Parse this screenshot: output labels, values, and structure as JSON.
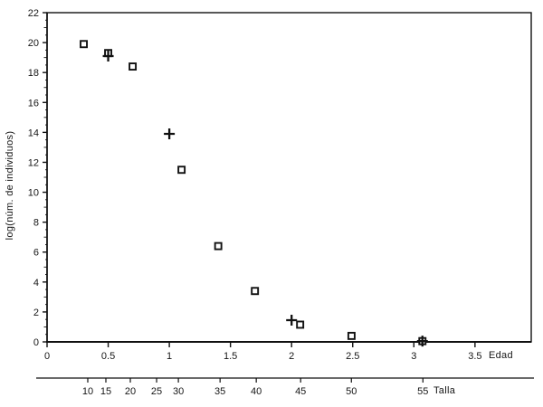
{
  "chart_data": {
    "type": "scatter",
    "title": "",
    "ylabel": "log(núm. de individuos)",
    "xlabel": "Edad",
    "x2label": "Talla",
    "xlim": [
      0,
      3.96
    ],
    "ylim": [
      0,
      22
    ],
    "grid": false,
    "legend": "none",
    "colors": {
      "marker": "#111111",
      "axis": "#111111",
      "background": "#ffffff"
    },
    "x_ticks": [
      {
        "value": 0,
        "label": "0"
      },
      {
        "value": 0.5,
        "label": "0.5"
      },
      {
        "value": 1,
        "label": "1"
      },
      {
        "value": 1.5,
        "label": "1.5"
      },
      {
        "value": 2,
        "label": "2"
      },
      {
        "value": 2.5,
        "label": "2.5"
      },
      {
        "value": 3,
        "label": "3"
      },
      {
        "value": 3.5,
        "label": "3.5"
      }
    ],
    "y_ticks": [
      {
        "value": 0,
        "label": "0"
      },
      {
        "value": 2,
        "label": "2"
      },
      {
        "value": 4,
        "label": "4"
      },
      {
        "value": 6,
        "label": "6"
      },
      {
        "value": 8,
        "label": "8"
      },
      {
        "value": 10,
        "label": "10"
      },
      {
        "value": 12,
        "label": "12"
      },
      {
        "value": 14,
        "label": "14"
      },
      {
        "value": 16,
        "label": "16"
      },
      {
        "value": 18,
        "label": "18"
      },
      {
        "value": 20,
        "label": "20"
      },
      {
        "value": 22,
        "label": "22"
      }
    ],
    "talla_ticks": [
      {
        "label": "10",
        "edad_pos": 0.333
      },
      {
        "label": "15",
        "edad_pos": 0.481
      },
      {
        "label": "20",
        "edad_pos": 0.681
      },
      {
        "label": "25",
        "edad_pos": 0.896
      },
      {
        "label": "30",
        "edad_pos": 1.074
      },
      {
        "label": "35",
        "edad_pos": 1.415
      },
      {
        "label": "40",
        "edad_pos": 1.711
      },
      {
        "label": "45",
        "edad_pos": 2.074
      },
      {
        "label": "50",
        "edad_pos": 2.489
      },
      {
        "label": "55",
        "edad_pos": 3.074
      }
    ],
    "series": [
      {
        "name": "square-markers",
        "marker": "square",
        "points": [
          [
            0.3,
            19.9
          ],
          [
            0.5,
            19.3
          ],
          [
            0.7,
            18.4
          ],
          [
            1.1,
            11.5
          ],
          [
            1.4,
            6.4
          ],
          [
            1.7,
            3.4
          ],
          [
            2.07,
            1.15
          ],
          [
            2.49,
            0.4
          ],
          [
            3.07,
            0.05
          ]
        ]
      },
      {
        "name": "plus-markers",
        "marker": "plus",
        "points": [
          [
            0.5,
            19.1
          ],
          [
            1.0,
            13.9
          ],
          [
            2.0,
            1.45
          ],
          [
            3.07,
            0.05
          ]
        ]
      }
    ]
  }
}
